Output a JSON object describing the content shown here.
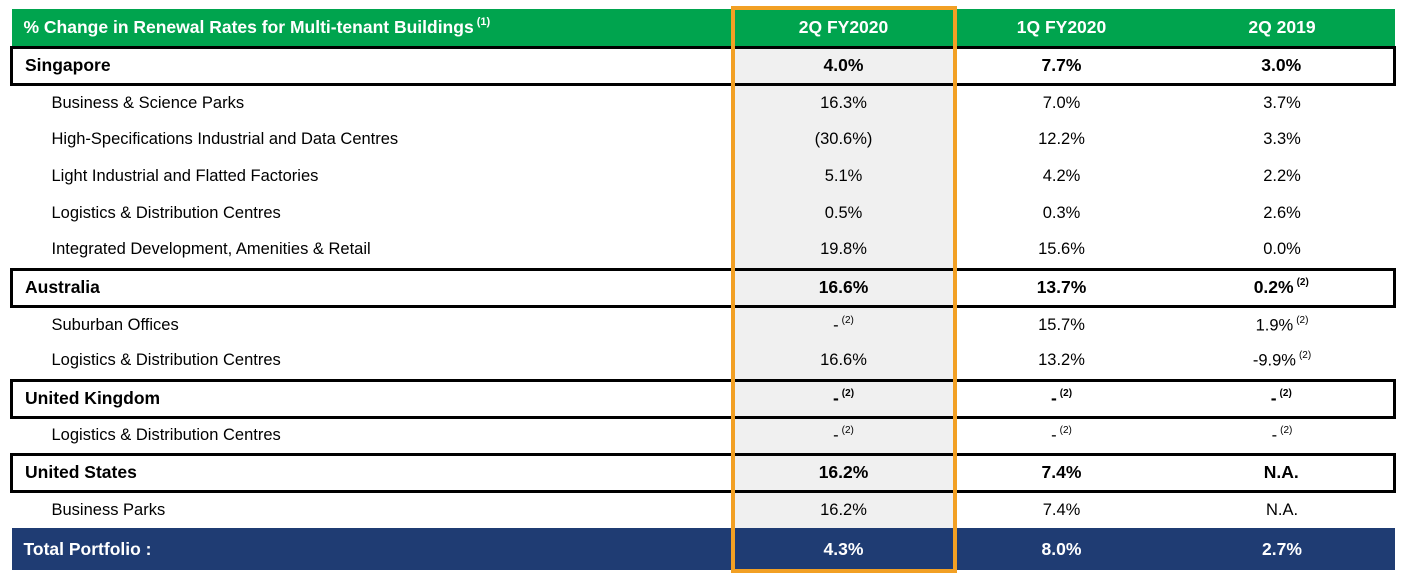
{
  "header": {
    "title": "% Change in Renewal Rates for Multi-tenant Buildings",
    "title_sup": "(1)",
    "columns": [
      "2Q FY2020",
      "1Q FY2020",
      "2Q 2019"
    ]
  },
  "rows": [
    {
      "label": "Singapore",
      "type": "section",
      "values": [
        "4.0%",
        "7.7%",
        "3.0%"
      ],
      "sups": [
        "",
        "",
        ""
      ]
    },
    {
      "label": "Business & Science Parks",
      "type": "sub",
      "values": [
        "16.3%",
        "7.0%",
        "3.7%"
      ],
      "sups": [
        "",
        "",
        ""
      ]
    },
    {
      "label": "High-Specifications Industrial and Data Centres",
      "type": "sub",
      "values": [
        "(30.6%)",
        "12.2%",
        "3.3%"
      ],
      "sups": [
        "",
        "",
        ""
      ]
    },
    {
      "label": "Light Industrial and Flatted Factories",
      "type": "sub",
      "values": [
        "5.1%",
        "4.2%",
        "2.2%"
      ],
      "sups": [
        "",
        "",
        ""
      ]
    },
    {
      "label": "Logistics & Distribution Centres",
      "type": "sub",
      "values": [
        "0.5%",
        "0.3%",
        "2.6%"
      ],
      "sups": [
        "",
        "",
        ""
      ]
    },
    {
      "label": "Integrated Development, Amenities & Retail",
      "type": "sub",
      "values": [
        "19.8%",
        "15.6%",
        "0.0%"
      ],
      "sups": [
        "",
        "",
        ""
      ]
    },
    {
      "label": "Australia",
      "type": "section",
      "values": [
        "16.6%",
        "13.7%",
        "0.2%"
      ],
      "sups": [
        "",
        "",
        "(2)"
      ]
    },
    {
      "label": "Suburban Offices",
      "type": "sub",
      "values": [
        "-",
        "15.7%",
        "1.9%"
      ],
      "sups": [
        "(2)",
        "",
        "(2)"
      ]
    },
    {
      "label": "Logistics & Distribution Centres",
      "type": "sub",
      "values": [
        "16.6%",
        "13.2%",
        "-9.9%"
      ],
      "sups": [
        "",
        "",
        "(2)"
      ]
    },
    {
      "label": "United Kingdom",
      "type": "section",
      "values": [
        "-",
        "-",
        "-"
      ],
      "sups": [
        "(2)",
        "(2)",
        "(2)"
      ]
    },
    {
      "label": "Logistics & Distribution Centres",
      "type": "sub",
      "values": [
        "-",
        "-",
        "-"
      ],
      "sups": [
        "(2)",
        "(2)",
        "(2)"
      ]
    },
    {
      "label": "United States",
      "type": "section",
      "values": [
        "16.2%",
        "7.4%",
        "N.A."
      ],
      "sups": [
        "",
        "",
        ""
      ]
    },
    {
      "label": "Business Parks",
      "type": "sub",
      "values": [
        "16.2%",
        "7.4%",
        "N.A."
      ],
      "sups": [
        "",
        "",
        ""
      ]
    }
  ],
  "total": {
    "label": "Total Portfolio :",
    "values": [
      "4.3%",
      "8.0%",
      "2.7%"
    ]
  },
  "colors": {
    "header_green": "#00A44E",
    "total_navy": "#1F3C73",
    "highlight_orange": "#F2A024",
    "highlight_fill": "#F0F0F0"
  }
}
